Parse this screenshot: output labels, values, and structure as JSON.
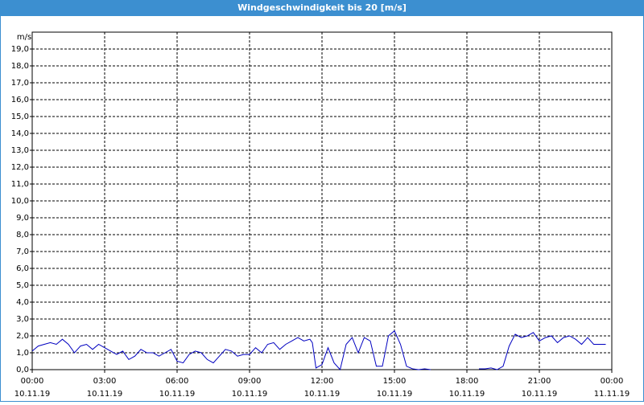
{
  "chart_data": {
    "type": "line",
    "title": "Windgeschwindigkeit bis 20 [m/s]",
    "y_unit": "m/s",
    "xlim": [
      0,
      24
    ],
    "ylim": [
      0,
      20
    ],
    "grid": true,
    "border_color": "#3c8fd0",
    "xticks": [
      {
        "value": 0,
        "label": "00:00",
        "date": "10.11.19"
      },
      {
        "value": 3,
        "label": "03:00",
        "date": "10.11.19"
      },
      {
        "value": 6,
        "label": "06:00",
        "date": "10.11.19"
      },
      {
        "value": 9,
        "label": "09:00",
        "date": "10.11.19"
      },
      {
        "value": 12,
        "label": "12:00",
        "date": "10.11.19"
      },
      {
        "value": 15,
        "label": "15:00",
        "date": "10.11.19"
      },
      {
        "value": 18,
        "label": "18:00",
        "date": "10.11.19"
      },
      {
        "value": 21,
        "label": "21:00",
        "date": "10.11.19"
      },
      {
        "value": 24,
        "label": "00:00",
        "date": "11.11.19"
      }
    ],
    "yticks": [
      {
        "value": 0,
        "label": "0,0"
      },
      {
        "value": 1,
        "label": "1,0"
      },
      {
        "value": 2,
        "label": "2,0"
      },
      {
        "value": 3,
        "label": "3,0"
      },
      {
        "value": 4,
        "label": "4,0"
      },
      {
        "value": 5,
        "label": "5,0"
      },
      {
        "value": 6,
        "label": "6,0"
      },
      {
        "value": 7,
        "label": "7,0"
      },
      {
        "value": 8,
        "label": "8,0"
      },
      {
        "value": 9,
        "label": "9,0"
      },
      {
        "value": 10,
        "label": "10,0"
      },
      {
        "value": 11,
        "label": "11,0"
      },
      {
        "value": 12,
        "label": "12,0"
      },
      {
        "value": 13,
        "label": "13,0"
      },
      {
        "value": 14,
        "label": "14,0"
      },
      {
        "value": 15,
        "label": "15,0"
      },
      {
        "value": 16,
        "label": "16,0"
      },
      {
        "value": 17,
        "label": "17,0"
      },
      {
        "value": 18,
        "label": "18,0"
      },
      {
        "value": 19,
        "label": "19,0"
      }
    ],
    "x": [
      0,
      0.25,
      0.5,
      0.75,
      1,
      1.25,
      1.5,
      1.75,
      2,
      2.25,
      2.5,
      2.75,
      3,
      3.25,
      3.5,
      3.75,
      4,
      4.25,
      4.5,
      4.75,
      5,
      5.25,
      5.5,
      5.75,
      6,
      6.25,
      6.5,
      6.75,
      7,
      7.25,
      7.5,
      7.75,
      8,
      8.25,
      8.5,
      8.75,
      9,
      9.25,
      9.5,
      9.75,
      10,
      10.25,
      10.5,
      10.75,
      11,
      11.25,
      11.5,
      11.6,
      11.75,
      12,
      12.25,
      12.5,
      12.75,
      13,
      13.25,
      13.5,
      13.75,
      14,
      14.25,
      14.5,
      14.75,
      15,
      15.25,
      15.5,
      15.75,
      16,
      16.25,
      16.5,
      17,
      18.5,
      18.75,
      19,
      19.25,
      19.5,
      19.75,
      20,
      20.25,
      20.5,
      20.75,
      21,
      21.25,
      21.5,
      21.75,
      22,
      22.25,
      22.5,
      22.75,
      23,
      23.25,
      23.5,
      23.75
    ],
    "series": [
      {
        "color": "#0000c0",
        "values": [
          1.1,
          1.4,
          1.5,
          1.6,
          1.5,
          1.8,
          1.5,
          1.0,
          1.4,
          1.5,
          1.2,
          1.5,
          1.3,
          1.1,
          0.9,
          1.1,
          0.6,
          0.8,
          1.2,
          1.0,
          1.0,
          0.8,
          1.0,
          1.2,
          0.5,
          0.4,
          0.9,
          1.1,
          1.0,
          0.6,
          0.4,
          0.8,
          1.2,
          1.1,
          0.8,
          0.9,
          0.9,
          1.3,
          1.0,
          1.5,
          1.6,
          1.2,
          1.5,
          1.7,
          1.9,
          1.7,
          1.8,
          1.6,
          0.1,
          0.3,
          1.3,
          0.4,
          0.0,
          1.5,
          1.9,
          1.0,
          1.9,
          1.7,
          0.2,
          0.2,
          2.0,
          2.3,
          1.5,
          0.2,
          0.05,
          0.0,
          0.05,
          0.0,
          null,
          0.05,
          0.05,
          0.1,
          0.0,
          0.2,
          1.4,
          2.1,
          1.9,
          2.0,
          2.2,
          1.7,
          1.9,
          2.0,
          1.6,
          1.9,
          2.0,
          1.8,
          1.5,
          1.9,
          1.5,
          1.5,
          1.5
        ]
      }
    ]
  }
}
